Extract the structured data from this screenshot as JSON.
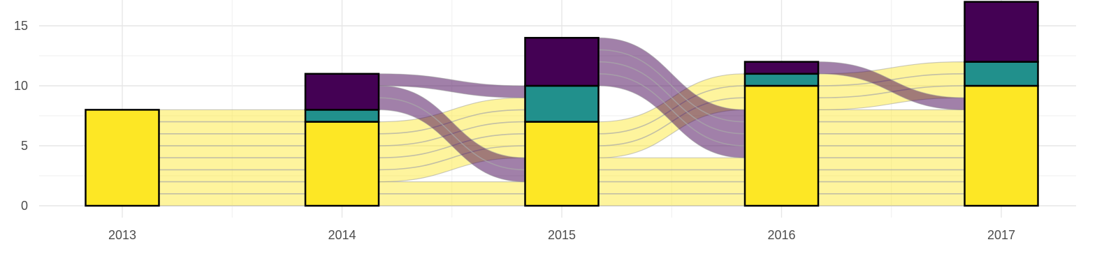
{
  "chart_data": {
    "type": "alluvial",
    "title": "",
    "xlabel": "",
    "ylabel": "",
    "categories": [
      "2013",
      "2014",
      "2015",
      "2016",
      "2017"
    ],
    "ylim": [
      0,
      17
    ],
    "y_ticks": [
      0,
      5,
      10,
      15
    ],
    "y_tick_labels": [
      "0",
      "5",
      "10",
      "15"
    ],
    "grid": true,
    "legend": "none",
    "stack_order_bottom_to_top": [
      "yellow",
      "teal",
      "purple"
    ],
    "colors": {
      "yellow": "#FDE725",
      "teal": "#21908C",
      "purple": "#440154",
      "yellow_flow": "#FDE725",
      "purple_flow": "#440154"
    },
    "series": [
      {
        "color_key": "yellow",
        "values": [
          8,
          7,
          7,
          10,
          10
        ]
      },
      {
        "color_key": "teal",
        "values": [
          0,
          1,
          3,
          1,
          2
        ]
      },
      {
        "color_key": "purple",
        "values": [
          0,
          3,
          4,
          1,
          5
        ]
      }
    ],
    "flows": [
      {
        "from": "2013",
        "to": "2014",
        "color_key": "yellow",
        "from_range": [
          0,
          8
        ],
        "to_range": [
          0,
          8
        ]
      },
      {
        "from": "2014",
        "to": "2015",
        "color_key": "yellow",
        "from_range": [
          0,
          2
        ],
        "to_range": [
          0,
          2
        ]
      },
      {
        "from": "2014",
        "to": "2015",
        "color_key": "yellow",
        "from_range": [
          2,
          7
        ],
        "to_range": [
          4,
          9
        ]
      },
      {
        "from": "2014",
        "to": "2015",
        "color_key": "purple",
        "from_range": [
          8,
          10
        ],
        "to_range": [
          2,
          4
        ]
      },
      {
        "from": "2014",
        "to": "2015",
        "color_key": "purple",
        "from_range": [
          10,
          11
        ],
        "to_range": [
          9,
          10
        ]
      },
      {
        "from": "2015",
        "to": "2016",
        "color_key": "yellow",
        "from_range": [
          0,
          4
        ],
        "to_range": [
          0,
          4
        ]
      },
      {
        "from": "2015",
        "to": "2016",
        "color_key": "yellow",
        "from_range": [
          4,
          7
        ],
        "to_range": [
          8,
          11
        ]
      },
      {
        "from": "2015",
        "to": "2016",
        "color_key": "purple",
        "from_range": [
          10,
          14
        ],
        "to_range": [
          4,
          8
        ]
      },
      {
        "from": "2016",
        "to": "2017",
        "color_key": "yellow",
        "from_range": [
          0,
          8
        ],
        "to_range": [
          0,
          8
        ]
      },
      {
        "from": "2016",
        "to": "2017",
        "color_key": "yellow",
        "from_range": [
          8,
          11
        ],
        "to_range": [
          9,
          12
        ]
      },
      {
        "from": "2016",
        "to": "2017",
        "color_key": "purple",
        "from_range": [
          11,
          12
        ],
        "to_range": [
          8,
          9
        ]
      }
    ]
  }
}
